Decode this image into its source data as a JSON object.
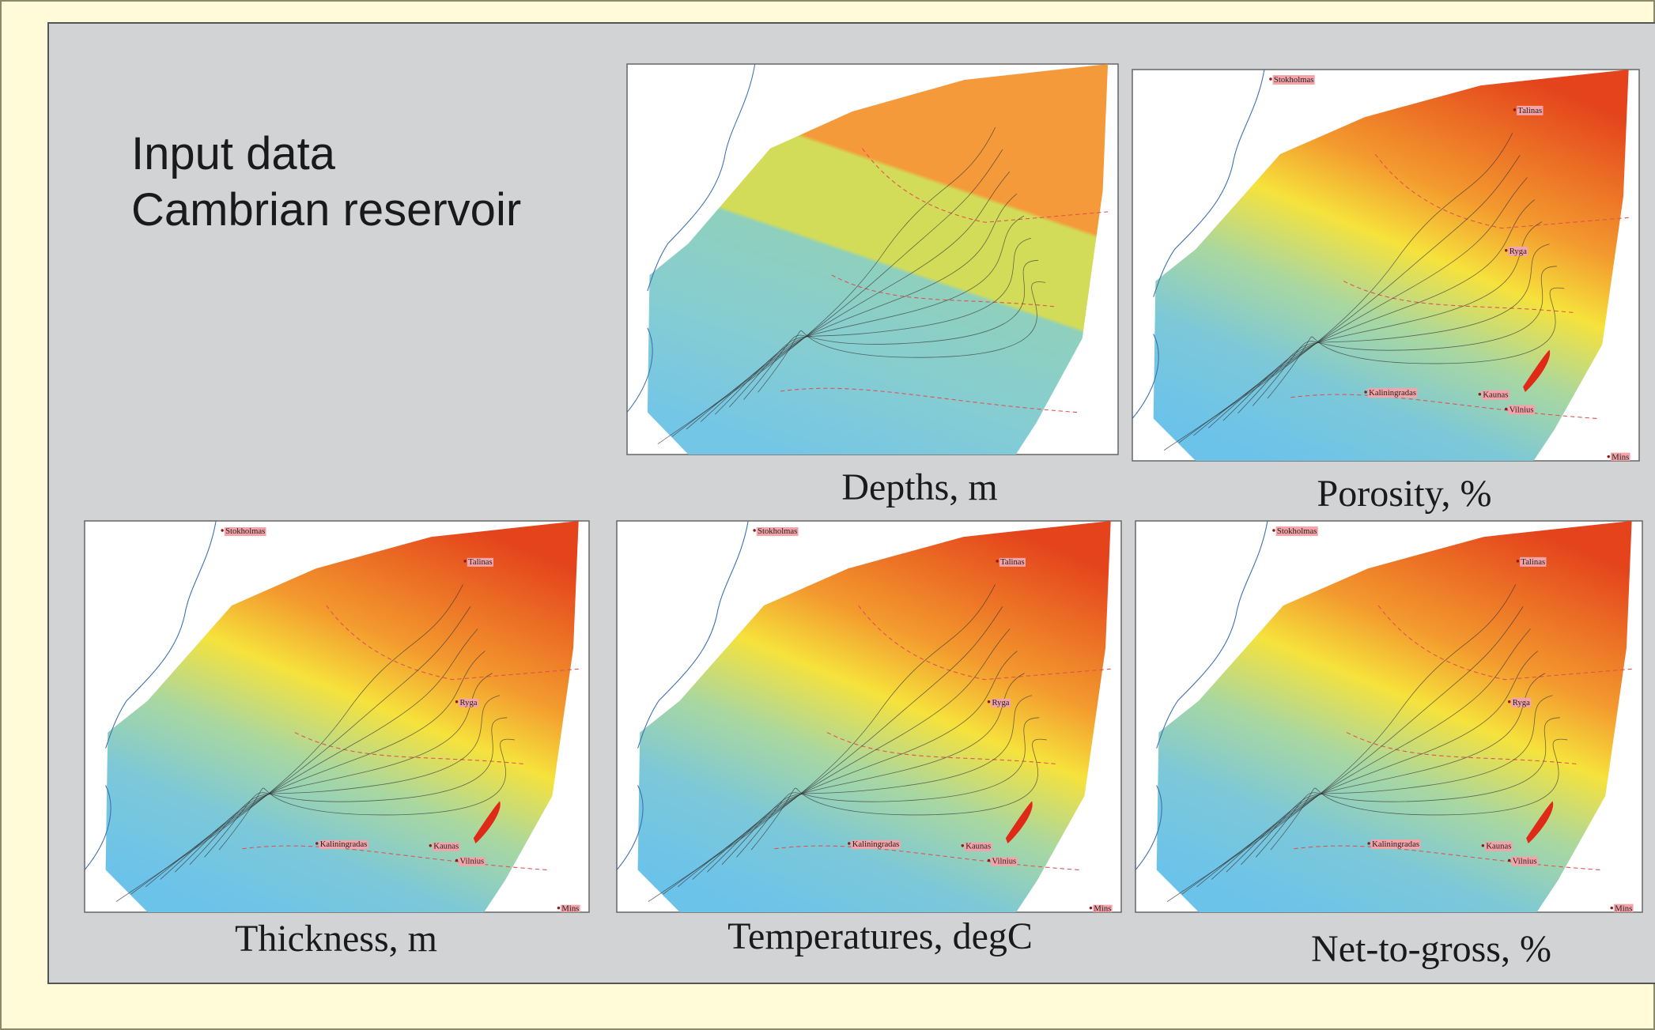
{
  "header": {
    "title_lines": [
      "Input data",
      "Cambrian reservoir"
    ]
  },
  "panels": [
    {
      "caption": "Depths, m",
      "cities": []
    },
    {
      "caption": "Porosity, %",
      "cities": [
        "Stokholmas",
        "Talinas",
        "Ryga",
        "Kaliningradas",
        "Kaunas",
        "Vilnius",
        "Mins"
      ]
    },
    {
      "caption": "Thickness, m",
      "cities": [
        "Stokholmas",
        "Talinas",
        "Ryga",
        "Kaliningradas",
        "Kaunas",
        "Vilnius",
        "Mins"
      ]
    },
    {
      "caption": "Temperatures, degC",
      "cities": [
        "Stokholmas",
        "Talinas",
        "Ryga",
        "Kaliningradas",
        "Kaunas",
        "Vilnius",
        "Mins"
      ]
    },
    {
      "caption": "Net-to-gross, %",
      "cities": [
        "Stokholmas",
        "Talinas",
        "Ryga",
        "Kaliningradas",
        "Kaunas",
        "Vilnius",
        "Mins"
      ]
    }
  ]
}
